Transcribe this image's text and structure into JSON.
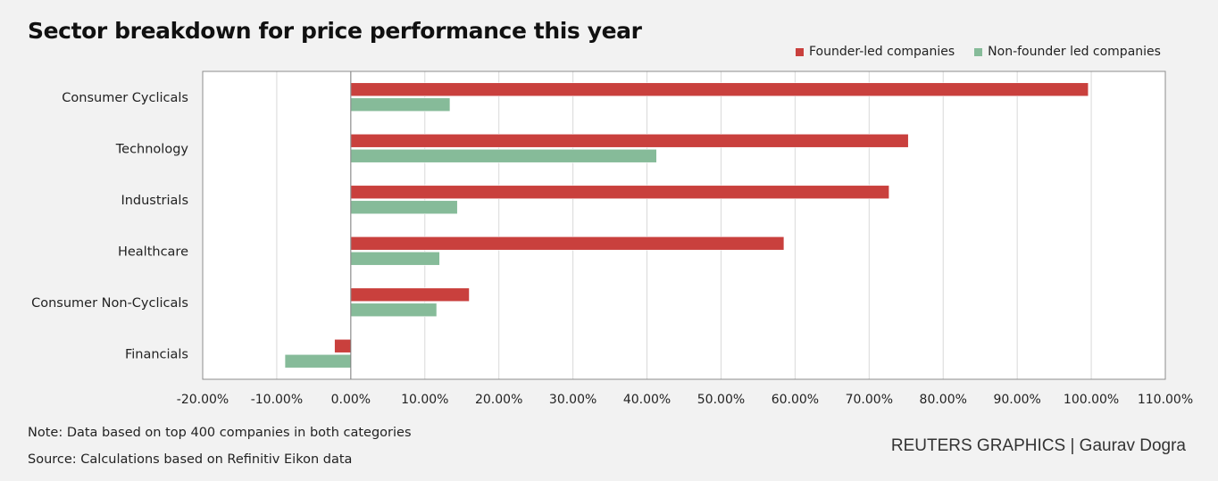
{
  "title": "Sector breakdown for price performance this year",
  "legend": {
    "founder_label": "Founder-led companies",
    "non_founder_label": "Non-founder led companies"
  },
  "colors": {
    "founder": "#c9403d",
    "non_founder": "#86bb99",
    "grid": "#d9d9d9",
    "plot_bg": "#ffffff",
    "border": "#8c8c8c"
  },
  "chart_data": {
    "type": "bar",
    "orientation": "horizontal",
    "categories": [
      "Consumer Cyclicals",
      "Technology",
      "Industrials",
      "Healthcare",
      "Consumer Non-Cyclicals",
      "Financials"
    ],
    "series": [
      {
        "name": "Founder-led companies",
        "values": [
          99.6,
          75.3,
          72.7,
          58.5,
          16.0,
          -2.2
        ]
      },
      {
        "name": "Non-founder led companies",
        "values": [
          13.4,
          41.3,
          14.4,
          12.0,
          11.6,
          -8.9
        ]
      }
    ],
    "x_ticks": [
      "-20.00%",
      "-10.00%",
      "0.00%",
      "10.00%",
      "20.00%",
      "30.00%",
      "40.00%",
      "50.00%",
      "60.00%",
      "70.00%",
      "80.00%",
      "90.00%",
      "100.00%",
      "110.00%"
    ],
    "xlim": [
      -20,
      110
    ],
    "grid": true,
    "legend_position": "top-right"
  },
  "footer": {
    "note": "Note: Data based on top 400 companies in both categories",
    "source": "Source: Calculations based on Refinitiv Eikon data",
    "credit": "REUTERS GRAPHICS | Gaurav Dogra"
  }
}
